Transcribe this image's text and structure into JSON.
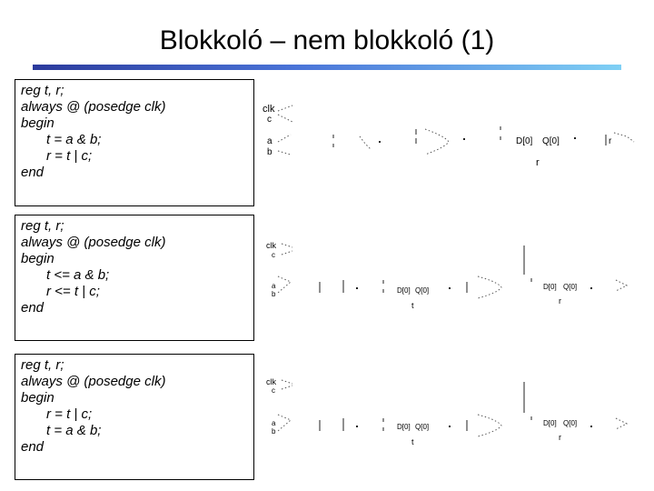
{
  "title": "Blokkoló – nem blokkoló (1)",
  "examples": [
    {
      "lines": [
        {
          "text": "reg t, r;",
          "indent": false
        },
        {
          "text": "always @ (posedge clk)",
          "indent": false
        },
        {
          "text": "begin",
          "indent": false
        },
        {
          "text": "t = a & b;",
          "indent": true
        },
        {
          "text": "r = t | c;",
          "indent": true
        },
        {
          "text": "end",
          "indent": false
        }
      ],
      "circuit": {
        "clk": "clk",
        "c": "c",
        "a": "a",
        "b": "b",
        "d": "D[0]",
        "q": "Q[0]",
        "reg": "r",
        "out": "r"
      }
    },
    {
      "lines": [
        {
          "text": "reg t, r;",
          "indent": false
        },
        {
          "text": "always @ (posedge clk)",
          "indent": false
        },
        {
          "text": "begin",
          "indent": false
        },
        {
          "text": "t <= a & b;",
          "indent": true
        },
        {
          "text": "r <= t | c;",
          "indent": true
        },
        {
          "text": "end",
          "indent": false
        }
      ],
      "circuit": {
        "clk": "clk",
        "c": "c",
        "a": "a",
        "b": "b",
        "d1": "D[0]",
        "q1": "Q[0]",
        "reg1": "t",
        "d2": "D[0]",
        "q2": "Q[0]",
        "reg2": "r"
      }
    },
    {
      "lines": [
        {
          "text": "reg t, r;",
          "indent": false
        },
        {
          "text": "always @ (posedge clk)",
          "indent": false
        },
        {
          "text": "begin",
          "indent": false
        },
        {
          "text": "r = t | c;",
          "indent": true
        },
        {
          "text": "t = a & b;",
          "indent": true
        },
        {
          "text": "end",
          "indent": false
        }
      ],
      "circuit": {
        "clk": "clk",
        "c": "c",
        "a": "a",
        "b": "b",
        "d1": "D[0]",
        "q1": "Q[0]",
        "reg1": "t",
        "d2": "D[0]",
        "q2": "Q[0]",
        "reg2": "r"
      }
    }
  ]
}
